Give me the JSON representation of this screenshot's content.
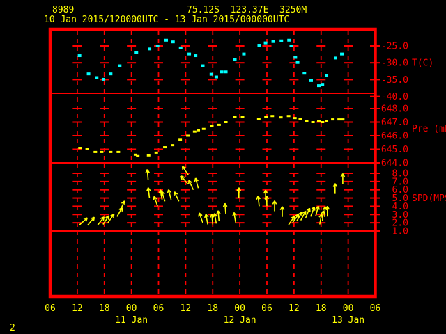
{
  "header": {
    "station_id": "8989",
    "location": "75.12S  123.37E  3250M",
    "date_range": "10 Jan 2015/120000UTC - 13 Jan 2015/000000UTC"
  },
  "footer": {
    "page_number": "2"
  },
  "colors": {
    "background": "#000000",
    "grid": "#ff0000",
    "border": "#ff0000",
    "axis_value_labels": "#ff0000",
    "time_labels": "#ffff00",
    "title_text": "#ffff00",
    "temperature_series": "#00ffff",
    "pressure_series": "#ffff00",
    "wind_arrows": "#ffff00"
  },
  "chart_data": {
    "type": "scatter",
    "description": "Three stacked meteogram panels (temperature, pressure, wind speed vectors) vs time",
    "x_axis": {
      "unit": "UTC time, hours since 10 Jan 2015 00UTC",
      "range_hours": [
        6,
        78
      ],
      "tick_hours": [
        6,
        12,
        18,
        24,
        30,
        36,
        42,
        48,
        54,
        60,
        66,
        72,
        78
      ],
      "tick_labels": [
        "06",
        "12",
        "18",
        "00",
        "06",
        "12",
        "18",
        "00",
        "06",
        "12",
        "18",
        "00",
        "06"
      ],
      "date_labels": [
        {
          "hour": 24,
          "label": "11 Jan"
        },
        {
          "hour": 48,
          "label": "12 Jan"
        },
        {
          "hour": 72,
          "label": "13 Jan"
        }
      ],
      "grid": "dashed-vertical"
    },
    "panels": [
      {
        "id": "temperature",
        "unit_label": "T(C)",
        "marker": "square-dot",
        "y_ticks": [
          {
            "v": -25,
            "label": "-25.0"
          },
          {
            "v": -30,
            "label": "-30.0"
          },
          {
            "v": -35,
            "label": "-35.0"
          },
          {
            "v": -40,
            "label": "-40.0"
          }
        ],
        "points": [
          [
            12.5,
            -27.9
          ],
          [
            14.5,
            -33.3
          ],
          [
            16.3,
            -34.4
          ],
          [
            17.8,
            -34.9
          ],
          [
            19.4,
            -33.3
          ],
          [
            21.4,
            -30.9
          ],
          [
            25.1,
            -27.0
          ],
          [
            28.0,
            -25.9
          ],
          [
            29.8,
            -25.0
          ],
          [
            31.7,
            -23.3
          ],
          [
            33.2,
            -23.8
          ],
          [
            34.9,
            -25.6
          ],
          [
            36.8,
            -27.4
          ],
          [
            38.2,
            -27.9
          ],
          [
            39.8,
            -30.9
          ],
          [
            41.7,
            -33.4
          ],
          [
            42.8,
            -34.2
          ],
          [
            44.0,
            -32.7
          ],
          [
            44.9,
            -32.7
          ],
          [
            46.9,
            -29.1
          ],
          [
            48.9,
            -27.4
          ],
          [
            52.3,
            -24.8
          ],
          [
            53.7,
            -24.1
          ],
          [
            55.4,
            -23.7
          ],
          [
            57.2,
            -23.5
          ],
          [
            58.9,
            -23.3
          ],
          [
            59.4,
            -25.0
          ],
          [
            60.3,
            -28.4
          ],
          [
            60.8,
            -29.9
          ],
          [
            62.3,
            -33.1
          ],
          [
            63.8,
            -35.3
          ],
          [
            65.5,
            -36.8
          ],
          [
            66.3,
            -36.4
          ],
          [
            67.2,
            -33.8
          ],
          [
            69.2,
            -28.6
          ],
          [
            70.6,
            -27.4
          ]
        ]
      },
      {
        "id": "pressure",
        "unit_label": "Pre (mb)",
        "marker": "square-dot",
        "y_ticks": [
          {
            "v": 648,
            "label": "648.0"
          },
          {
            "v": 647,
            "label": "647.0"
          },
          {
            "v": 646,
            "label": "646.0"
          },
          {
            "v": 645,
            "label": "645.0"
          },
          {
            "v": 644,
            "label": "644.0"
          }
        ],
        "points": [
          [
            12.6,
            645.1
          ],
          [
            14.2,
            645.0
          ],
          [
            16.0,
            644.8
          ],
          [
            17.4,
            644.8
          ],
          [
            19.4,
            644.8
          ],
          [
            21.1,
            644.8
          ],
          [
            24.9,
            644.6
          ],
          [
            25.4,
            644.5
          ],
          [
            27.8,
            644.55
          ],
          [
            29.5,
            644.75
          ],
          [
            31.4,
            645.15
          ],
          [
            33.1,
            645.3
          ],
          [
            34.8,
            645.7
          ],
          [
            36.5,
            646.0
          ],
          [
            38.0,
            646.3
          ],
          [
            38.8,
            646.4
          ],
          [
            40.0,
            646.5
          ],
          [
            41.8,
            646.7
          ],
          [
            43.4,
            646.8
          ],
          [
            44.9,
            647.0
          ],
          [
            46.9,
            647.4
          ],
          [
            48.6,
            647.4
          ],
          [
            52.2,
            647.25
          ],
          [
            53.8,
            647.4
          ],
          [
            55.2,
            647.45
          ],
          [
            57.1,
            647.35
          ],
          [
            58.8,
            647.45
          ],
          [
            60.2,
            647.3
          ],
          [
            61.4,
            647.25
          ],
          [
            62.8,
            647.1
          ],
          [
            64.2,
            647.0
          ],
          [
            65.5,
            647.05
          ],
          [
            66.3,
            647.0
          ],
          [
            67.2,
            647.1
          ],
          [
            68.6,
            647.2
          ],
          [
            70.0,
            647.2
          ],
          [
            70.8,
            647.2
          ]
        ]
      },
      {
        "id": "wind_speed",
        "unit_label": "SPD(MPS)",
        "marker": "arrow",
        "dir_note": "arrows: [hour, speed_mps, pointing direction in degrees CCW from screen-right (90 = up)]",
        "y_ticks": [
          {
            "v": 8,
            "label": "8.0"
          },
          {
            "v": 7,
            "label": "7.0"
          },
          {
            "v": 6,
            "label": "6.0"
          },
          {
            "v": 5,
            "label": "5.0"
          },
          {
            "v": 4,
            "label": "4.0"
          },
          {
            "v": 3,
            "label": "3.0"
          },
          {
            "v": 2,
            "label": "2.0"
          },
          {
            "v": 1,
            "label": "1.0"
          }
        ],
        "arrows": [
          [
            12.5,
            1.75,
            42
          ],
          [
            14.3,
            1.7,
            50
          ],
          [
            16.5,
            1.7,
            52
          ],
          [
            17.7,
            1.8,
            55
          ],
          [
            18.8,
            2.0,
            55
          ],
          [
            20.8,
            2.75,
            60
          ],
          [
            21.5,
            3.5,
            65
          ],
          [
            27.7,
            7.2,
            95
          ],
          [
            28.0,
            5.0,
            97
          ],
          [
            29.8,
            4.0,
            110
          ],
          [
            30.8,
            4.75,
            100
          ],
          [
            31.4,
            4.6,
            107
          ],
          [
            32.8,
            4.8,
            105
          ],
          [
            34.5,
            4.6,
            115
          ],
          [
            36.6,
            7.8,
            125
          ],
          [
            36.5,
            6.7,
            130
          ],
          [
            37.7,
            6.0,
            115
          ],
          [
            38.8,
            6.2,
            105
          ],
          [
            39.8,
            2.0,
            110
          ],
          [
            40.9,
            1.8,
            100
          ],
          [
            42.0,
            1.8,
            95
          ],
          [
            42.8,
            1.9,
            100
          ],
          [
            43.4,
            2.2,
            95
          ],
          [
            44.9,
            3.1,
            95
          ],
          [
            47.1,
            2.0,
            100
          ],
          [
            47.8,
            5.0,
            90
          ],
          [
            52.3,
            4.0,
            97
          ],
          [
            53.7,
            4.7,
            90
          ],
          [
            54.0,
            4.0,
            92
          ],
          [
            55.7,
            3.4,
            90
          ],
          [
            57.4,
            2.7,
            90
          ],
          [
            58.8,
            1.75,
            55
          ],
          [
            59.7,
            2.0,
            55
          ],
          [
            60.6,
            2.2,
            60
          ],
          [
            61.5,
            2.3,
            62
          ],
          [
            62.6,
            2.6,
            68
          ],
          [
            63.7,
            2.75,
            70
          ],
          [
            64.8,
            2.8,
            75
          ],
          [
            65.7,
            1.8,
            80
          ],
          [
            66.3,
            2.2,
            85
          ],
          [
            66.8,
            2.7,
            88
          ],
          [
            67.4,
            2.75,
            90
          ],
          [
            69.1,
            5.5,
            90
          ],
          [
            70.8,
            6.7,
            90
          ]
        ]
      },
      {
        "id": "empty",
        "unit_label": "",
        "y_ticks": [],
        "points": []
      }
    ]
  }
}
